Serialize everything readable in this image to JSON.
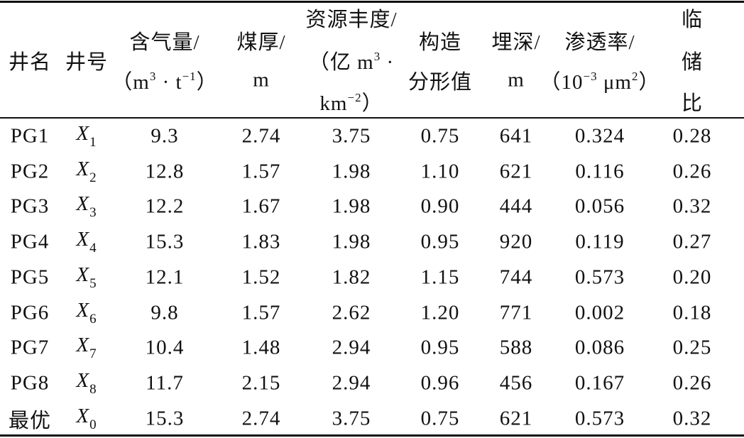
{
  "table": {
    "header": [
      {
        "lines": [
          [
            "井名"
          ]
        ]
      },
      {
        "lines": [
          [
            "井号"
          ]
        ]
      },
      {
        "lines": [
          [
            "含气量/"
          ],
          [
            "（m",
            {
              "sup": "3"
            },
            " · t",
            {
              "sup": "−1"
            },
            "）"
          ]
        ]
      },
      {
        "lines": [
          [
            "煤厚/"
          ],
          [
            "m"
          ]
        ]
      },
      {
        "lines": [
          [
            "资源丰度/"
          ],
          [
            "（亿 m",
            {
              "sup": "3"
            },
            " ·"
          ],
          [
            "km",
            {
              "sup": "−2"
            },
            "）"
          ]
        ]
      },
      {
        "lines": [
          [
            "构造"
          ],
          [
            "分形值"
          ]
        ]
      },
      {
        "lines": [
          [
            "埋深/"
          ],
          [
            "m"
          ]
        ]
      },
      {
        "lines": [
          [
            "渗透率/"
          ],
          [
            "（10",
            {
              "sup": "−3"
            },
            " μm",
            {
              "sup": "2"
            },
            "）"
          ]
        ]
      },
      {
        "lines": [
          [
            "临"
          ],
          [
            "储"
          ],
          [
            "比"
          ]
        ]
      }
    ],
    "rows": [
      {
        "name": "PG1",
        "id": {
          "symbol": "X",
          "sub": "1"
        },
        "cells": [
          "9.3",
          "2.74",
          "3.75",
          "0.75",
          "641",
          "0.324",
          "0.28"
        ]
      },
      {
        "name": "PG2",
        "id": {
          "symbol": "X",
          "sub": "2"
        },
        "cells": [
          "12.8",
          "1.57",
          "1.98",
          "1.10",
          "621",
          "0.116",
          "0.26"
        ]
      },
      {
        "name": "PG3",
        "id": {
          "symbol": "X",
          "sub": "3"
        },
        "cells": [
          "12.2",
          "1.67",
          "1.98",
          "0.90",
          "444",
          "0.056",
          "0.32"
        ]
      },
      {
        "name": "PG4",
        "id": {
          "symbol": "X",
          "sub": "4"
        },
        "cells": [
          "15.3",
          "1.83",
          "1.98",
          "0.95",
          "920",
          "0.119",
          "0.27"
        ]
      },
      {
        "name": "PG5",
        "id": {
          "symbol": "X",
          "sub": "5"
        },
        "cells": [
          "12.1",
          "1.52",
          "1.82",
          "1.15",
          "744",
          "0.573",
          "0.20"
        ]
      },
      {
        "name": "PG6",
        "id": {
          "symbol": "X",
          "sub": "6"
        },
        "cells": [
          "9.8",
          "1.57",
          "2.62",
          "1.20",
          "771",
          "0.002",
          "0.18"
        ]
      },
      {
        "name": "PG7",
        "id": {
          "symbol": "X",
          "sub": "7"
        },
        "cells": [
          "10.4",
          "1.48",
          "2.94",
          "0.95",
          "588",
          "0.086",
          "0.25"
        ]
      },
      {
        "name": "PG8",
        "id": {
          "symbol": "X",
          "sub": "8"
        },
        "cells": [
          "11.7",
          "2.15",
          "2.94",
          "0.96",
          "456",
          "0.167",
          "0.26"
        ]
      },
      {
        "name": "最优",
        "id": {
          "symbol": "X",
          "sub": "0"
        },
        "cells": [
          "15.3",
          "2.74",
          "3.75",
          "0.75",
          "621",
          "0.573",
          "0.32"
        ]
      }
    ]
  }
}
